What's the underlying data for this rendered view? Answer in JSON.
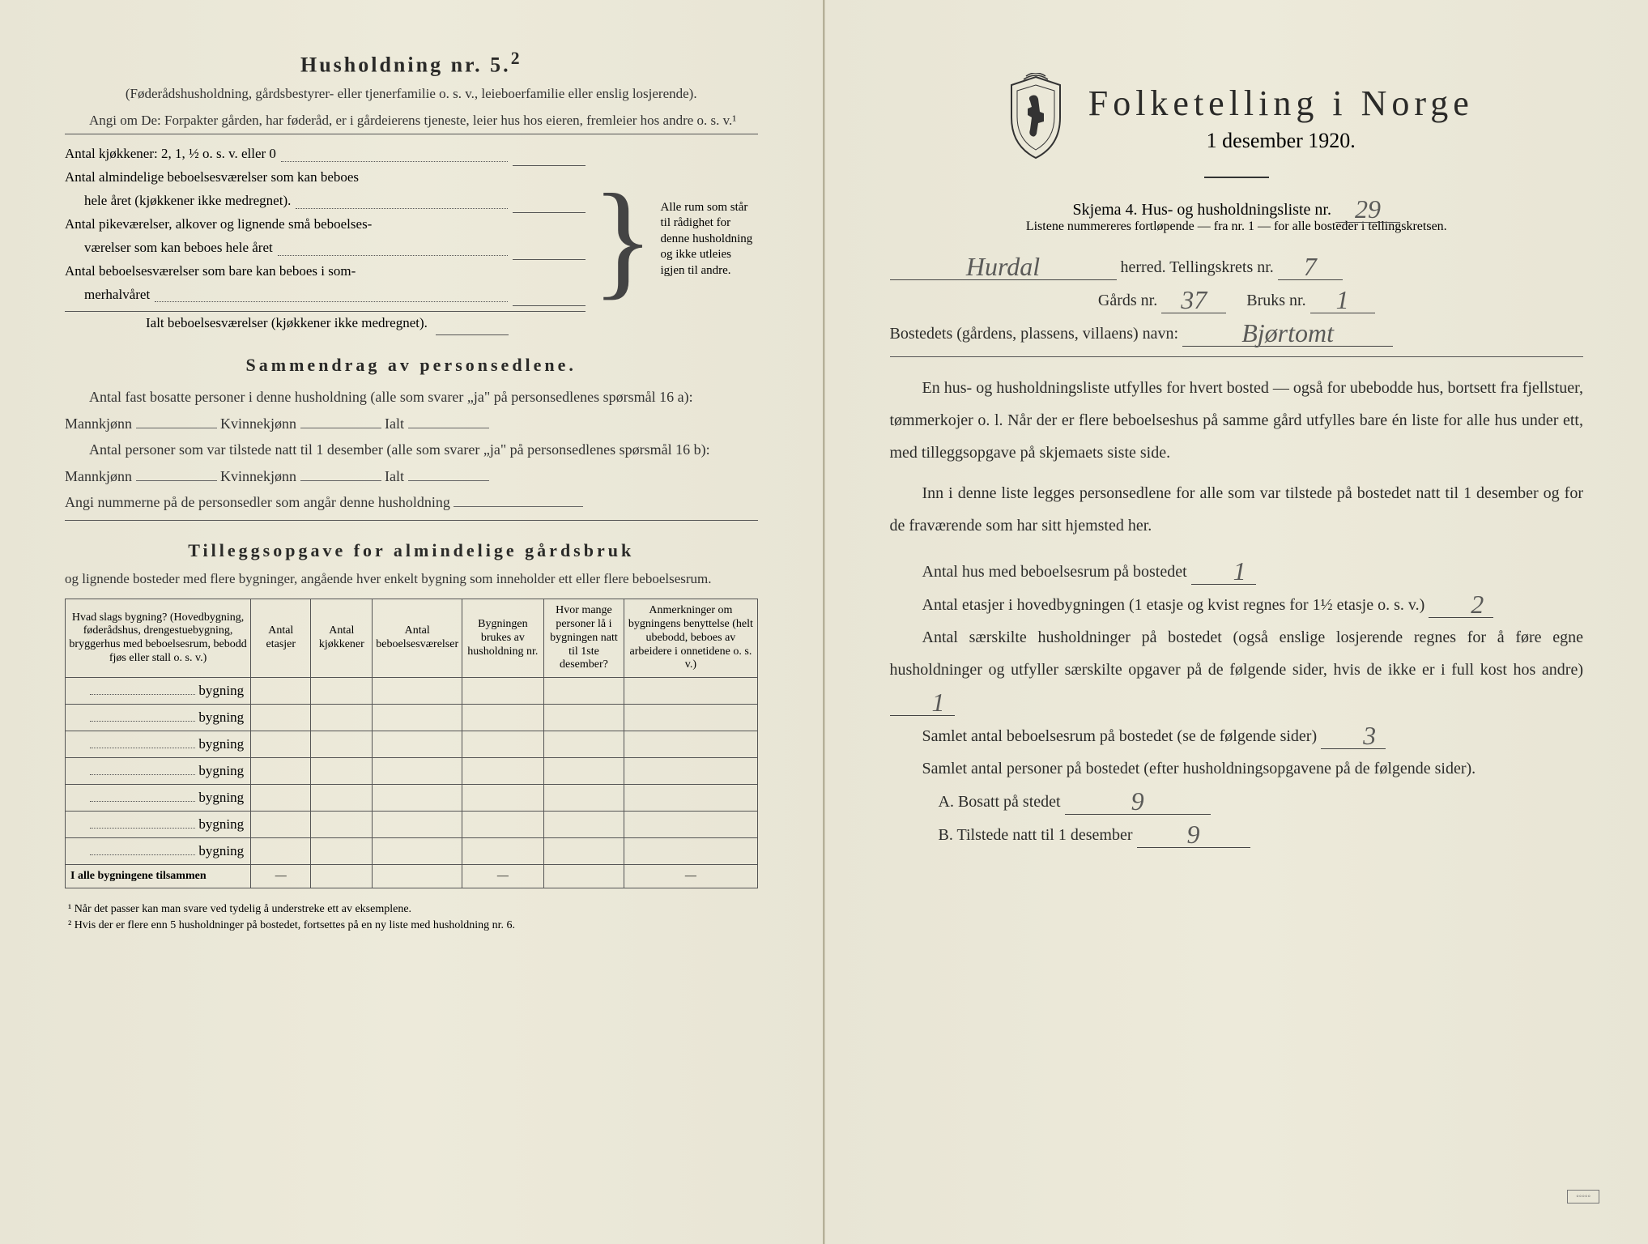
{
  "left": {
    "h_title": "Husholdning nr. 5.",
    "h_title_sup": "2",
    "h_sub": "(Føderådshusholdning, gårdsbestyrer- eller tjenerfamilie o. s. v., leieboerfamilie eller enslig losjerende).",
    "h_angi": "Angi om De: Forpakter gården, har føderåd, er i gårdeierens tjeneste, leier hus hos eieren, fremleier hos andre o. s. v.¹",
    "rows": {
      "r1": "Antal kjøkkener: 2, 1, ½ o. s. v. eller 0",
      "r2a": "Antal almindelige beboelsesværelser som kan beboes",
      "r2b": "hele året (kjøkkener ikke medregnet).",
      "r3a": "Antal pikeværelser, alkover og lignende små beboelses-",
      "r3b": "værelser som kan beboes hele året",
      "r4a": "Antal beboelsesværelser som bare kan beboes i som-",
      "r4b": "merhalvåret",
      "r5": "Ialt beboelsesværelser (kjøkkener ikke medregnet)."
    },
    "bracket_text": "Alle rum som står til rådighet for denne husholdning og ikke utleies igjen til andre.",
    "sammendrag_title": "Sammendrag av personsedlene.",
    "sd_l1": "Antal fast bosatte personer i denne husholdning (alle som svarer „ja\" på personsedlenes spørsmål 16 a): Mannkjønn",
    "sd_kv": "Kvinnekjønn",
    "sd_ialt": "Ialt",
    "sd_l2": "Antal personer som var tilstede natt til 1 desember (alle som svarer „ja\" på personsedlenes spørsmål 16 b): Mannkjønn",
    "sd_l3": "Angi nummerne på de personsedler som angår denne husholdning",
    "tillegg_title": "Tilleggsopgave for almindelige gårdsbruk",
    "tillegg_sub": "og lignende bosteder med flere bygninger, angående hver enkelt bygning som inneholder ett eller flere beboelsesrum.",
    "table": {
      "cols": [
        "Hvad slags bygning?\n(Hovedbygning, føderådshus, drengestuebygning, bryggerhus med beboelsesrum, bebodd fjøs eller stall o. s. v.)",
        "Antal etasjer",
        "Antal kjøkkener",
        "Antal beboelsesværelser",
        "Bygningen brukes av husholdning nr.",
        "Hvor mange personer lå i bygningen natt til 1ste desember?",
        "Anmerkninger om bygningens benyttelse (helt ubebodd, beboes av arbeidere i onnetidene o. s. v.)"
      ],
      "row_label": "bygning",
      "total_label": "I alle bygningene tilsammen",
      "row_count": 7
    },
    "footnote1": "¹ Når det passer kan man svare ved tydelig å understreke ett av eksemplene.",
    "footnote2": "² Hvis der er flere enn 5 husholdninger på bostedet, fortsettes på en ny liste med husholdning nr. 6."
  },
  "right": {
    "title": "Folketelling i Norge",
    "subtitle": "1 desember 1920.",
    "skjema_line": "Skjema 4.  Hus- og husholdningsliste nr.",
    "skjema_nr": "29",
    "listene_note": "Listene nummereres fortløpende — fra nr. 1 — for alle bosteder i tellingskretsen.",
    "herred_label": "herred.   Tellingskrets nr.",
    "herred_value": "Hurdal",
    "krets_nr": "7",
    "gard_label": "Gårds nr.",
    "gard_nr": "37",
    "bruk_label": "Bruks nr.",
    "bruk_nr": "1",
    "bosted_label": "Bostedets (gårdens, plassens, villaens) navn:",
    "bosted_value": "Bjørtomt",
    "para1": "En hus- og husholdningsliste utfylles for hvert bosted — også for ubebodde hus, bortsett fra fjellstuer, tømmerkojer o. l.  Når der er flere beboelseshus på samme gård utfylles bare én liste for alle hus under ett, med tilleggsopgave på skjemaets siste side.",
    "para2": "Inn i denne liste legges personsedlene for alle som var tilstede på bostedet natt til 1 desember og for de fraværende som har sitt hjemsted her.",
    "q1": "Antal hus med beboelsesrum på bostedet",
    "q1v": "1",
    "q2a": "Antal etasjer i hovedbygningen (1 etasje og kvist regnes for 1½ etasje o. s. v.)",
    "q2v": "2",
    "q3": "Antal særskilte husholdninger på bostedet (også enslige losjerende regnes for å føre egne husholdninger og utfyller særskilte opgaver på de følgende sider, hvis de ikke er i full kost hos andre)",
    "q3v": "1",
    "q4": "Samlet antal beboelsesrum på bostedet (se de følgende sider)",
    "q4v": "3",
    "q5": "Samlet antal personer på bostedet (efter husholdningsopgavene på de følgende sider).",
    "qA": "A.  Bosatt på stedet",
    "qAv": "9",
    "qB": "B.  Tilstede natt til 1 desember",
    "qBv": "9"
  },
  "colors": {
    "paper": "#ece8d8",
    "ink": "#2a2a28",
    "pencil": "#5a5a58"
  }
}
